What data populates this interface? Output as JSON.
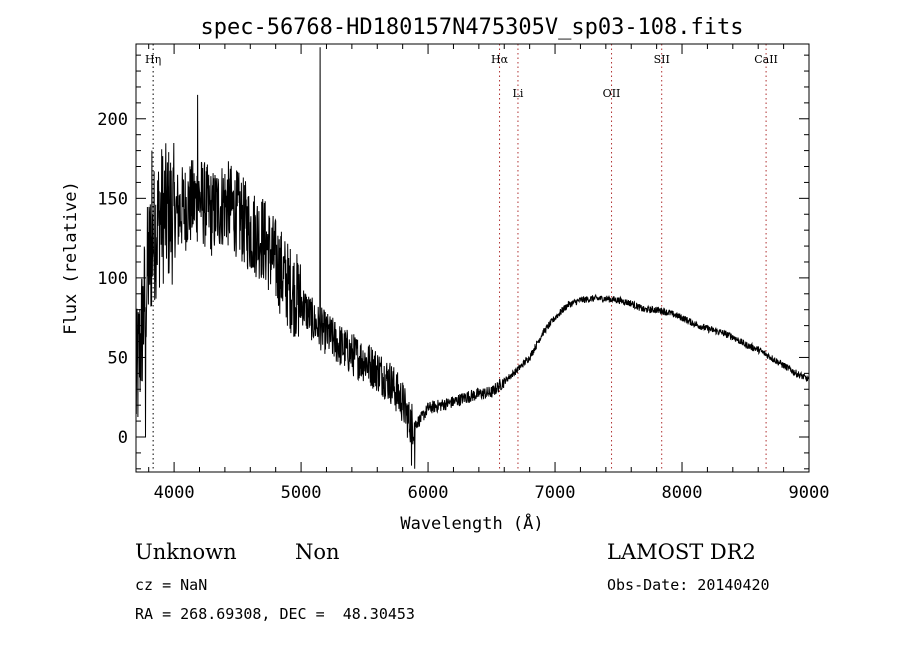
{
  "chart_data": {
    "type": "line",
    "title": "spec-56768-HD180157N475305V_sp03-108.fits",
    "xlabel": "Wavelength (Å)",
    "ylabel": "Flux (relative)",
    "xlim": [
      3700,
      9000
    ],
    "ylim": [
      -22,
      247
    ],
    "xticks": [
      4000,
      5000,
      6000,
      7000,
      8000,
      9000
    ],
    "yticks": [
      0,
      50,
      100,
      150,
      200
    ],
    "grid": false,
    "lines": [
      {
        "label": "Hη",
        "x": 3835,
        "row": "top",
        "color": "#000000"
      },
      {
        "label": "Hα",
        "x": 6563,
        "row": "top",
        "color": "#b03030"
      },
      {
        "label": "Li",
        "x": 6708,
        "row": "second",
        "color": "#b03030"
      },
      {
        "label": "OII",
        "x": 7445,
        "row": "second",
        "color": "#b03030"
      },
      {
        "label": "SII",
        "x": 7840,
        "row": "top",
        "color": "#b03030"
      },
      {
        "label": "CaII",
        "x": 8662,
        "row": "top",
        "color": "#b03030"
      }
    ],
    "anchors": [
      [
        3700,
        30
      ],
      [
        3750,
        70
      ],
      [
        3800,
        110
      ],
      [
        3850,
        130
      ],
      [
        3900,
        140
      ],
      [
        4000,
        140
      ],
      [
        4100,
        145
      ],
      [
        4200,
        150
      ],
      [
        4300,
        140
      ],
      [
        4400,
        148
      ],
      [
        4500,
        140
      ],
      [
        4600,
        130
      ],
      [
        4700,
        125
      ],
      [
        4800,
        110
      ],
      [
        4900,
        95
      ],
      [
        5000,
        85
      ],
      [
        5100,
        72
      ],
      [
        5200,
        65
      ],
      [
        5300,
        58
      ],
      [
        5400,
        52
      ],
      [
        5500,
        48
      ],
      [
        5600,
        42
      ],
      [
        5700,
        35
      ],
      [
        5800,
        22
      ],
      [
        5850,
        10
      ],
      [
        5900,
        8
      ],
      [
        5950,
        12
      ],
      [
        6000,
        18
      ],
      [
        6100,
        20
      ],
      [
        6200,
        22
      ],
      [
        6300,
        25
      ],
      [
        6400,
        27
      ],
      [
        6500,
        28
      ],
      [
        6600,
        35
      ],
      [
        6700,
        42
      ],
      [
        6800,
        50
      ],
      [
        6900,
        65
      ],
      [
        7000,
        75
      ],
      [
        7100,
        83
      ],
      [
        7200,
        86
      ],
      [
        7300,
        87
      ],
      [
        7400,
        87
      ],
      [
        7500,
        86
      ],
      [
        7600,
        84
      ],
      [
        7700,
        80
      ],
      [
        7800,
        80
      ],
      [
        7900,
        78
      ],
      [
        8000,
        75
      ],
      [
        8100,
        71
      ],
      [
        8200,
        68
      ],
      [
        8300,
        66
      ],
      [
        8400,
        63
      ],
      [
        8500,
        58
      ],
      [
        8600,
        55
      ],
      [
        8700,
        50
      ],
      [
        8800,
        45
      ],
      [
        8900,
        40
      ],
      [
        9000,
        36
      ]
    ],
    "spikes": [
      [
        5150,
        245
      ],
      [
        4185,
        215
      ],
      [
        3825,
        180
      ],
      [
        5895,
        -20
      ],
      [
        5870,
        -18
      ],
      [
        3775,
        0
      ]
    ]
  },
  "info": {
    "class": "Unknown",
    "subclass": "Non",
    "survey": "LAMOST DR2",
    "cz": "cz = NaN",
    "obs_date": "Obs-Date: 20140420",
    "radec": "RA = 268.69308, DEC =  48.30453"
  }
}
